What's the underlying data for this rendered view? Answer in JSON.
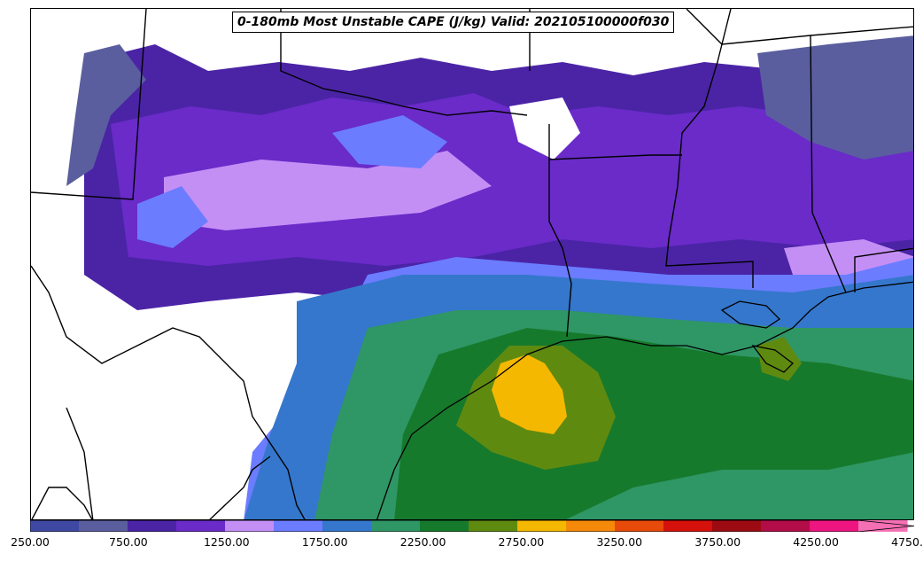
{
  "title": "0-180mb Most Unstable CAPE (J/kg) Valid: 202105100000f030",
  "colorbar": {
    "colors": [
      "#3f48a3",
      "#5a5e9e",
      "#4b24a6",
      "#6a2bc9",
      "#c48ff5",
      "#6b7cff",
      "#3577cc",
      "#2f9665",
      "#167a2c",
      "#5f8a10",
      "#f5b800",
      "#f58a0a",
      "#e84a0a",
      "#d4110b",
      "#9c0b12",
      "#b30d48",
      "#ef1581",
      "#f56fb4"
    ],
    "tick_labels": [
      "250.00",
      "750.00",
      "1250.00",
      "1750.00",
      "2250.00",
      "2750.00",
      "3250.00",
      "3750.00",
      "4250.00",
      "4750.00"
    ],
    "min": 250,
    "max": 4750,
    "step": 250,
    "extend": "max"
  }
}
